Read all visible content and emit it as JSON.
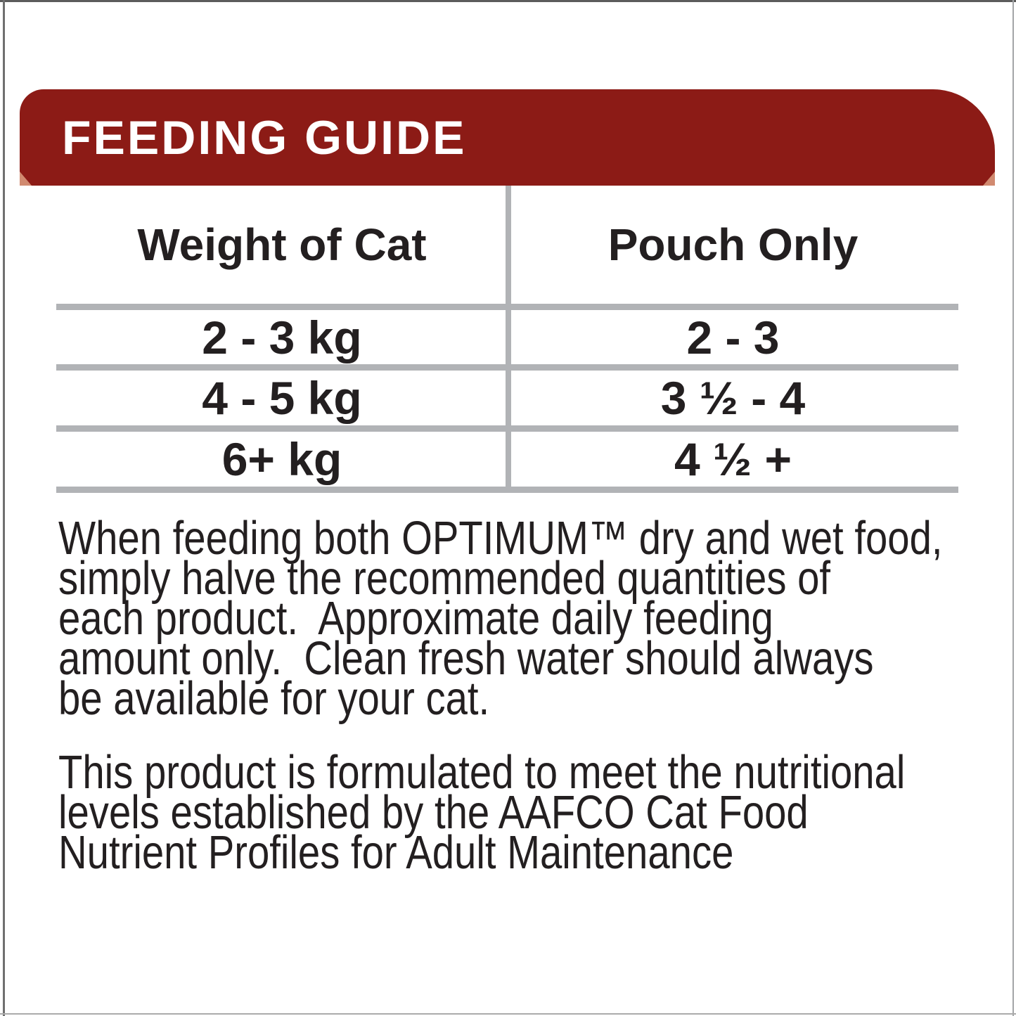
{
  "banner": {
    "title": "FEEDING GUIDE",
    "bg_color": "#8C1B16",
    "fold_accent_color": "#D18A70",
    "text_color": "#FFFFFF"
  },
  "table": {
    "columns": [
      "Weight of Cat",
      "Pouch Only"
    ],
    "rows": [
      {
        "weight": "2 - 3 kg",
        "pouches": "2 - 3"
      },
      {
        "weight": "4 - 5 kg",
        "pouches": "3 ½ - 4"
      },
      {
        "weight": "6+ kg",
        "pouches": "4 ½ +"
      }
    ],
    "rule_color": "#B1B3B6"
  },
  "body": {
    "paragraph1": "When feeding both OPTIMUM™ dry and wet food,\nsimply halve the recommended quantities of\neach product.  Approximate daily feeding\namount only.  Clean fresh water should always\nbe available for your cat.",
    "paragraph2": "This product is formulated to meet the nutritional\nlevels established by the AAFCO Cat Food\nNutrient Profiles for Adult Maintenance"
  },
  "colors": {
    "text": "#231F20",
    "frame": "#6f6f6f"
  }
}
